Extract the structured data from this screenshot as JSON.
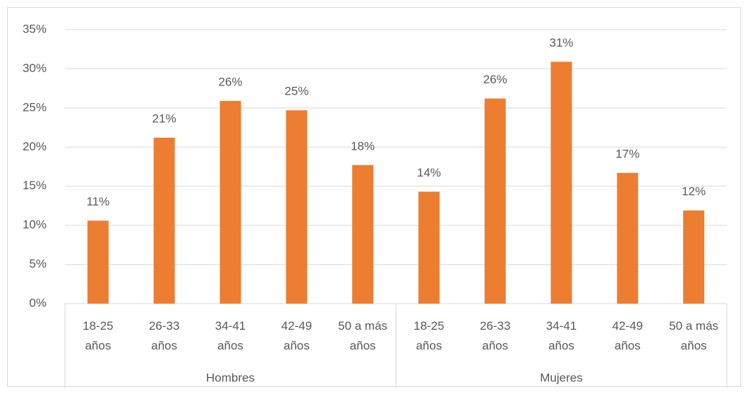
{
  "chart_data": {
    "type": "bar",
    "color": "#ed7d31",
    "grid": true,
    "ylim": [
      0,
      35
    ],
    "yticks": [
      {
        "value": 0,
        "label": "0%"
      },
      {
        "value": 5,
        "label": "5%"
      },
      {
        "value": 10,
        "label": "10%"
      },
      {
        "value": 15,
        "label": "15%"
      },
      {
        "value": 20,
        "label": "20%"
      },
      {
        "value": 25,
        "label": "25%"
      },
      {
        "value": 30,
        "label": "30%"
      },
      {
        "value": 35,
        "label": "35%"
      }
    ],
    "groups": [
      {
        "name": "Hombres",
        "categories": [
          "18-25\naños",
          "26-33\naños",
          "34-41\naños",
          "42-49\naños",
          "50 a más\naños"
        ],
        "values": [
          10.6,
          21.2,
          25.9,
          24.7,
          17.7
        ],
        "value_labels": [
          "11%",
          "21%",
          "26%",
          "25%",
          "18%"
        ]
      },
      {
        "name": "Mujeres",
        "categories": [
          "18-25\naños",
          "26-33\naños",
          "34-41\naños",
          "42-49\naños",
          "50 a más\naños"
        ],
        "values": [
          14.3,
          26.2,
          30.9,
          16.7,
          11.9
        ],
        "value_labels": [
          "14%",
          "26%",
          "31%",
          "17%",
          "12%"
        ]
      }
    ]
  }
}
